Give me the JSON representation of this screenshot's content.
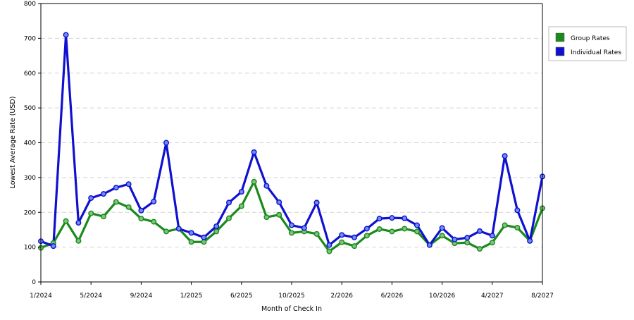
{
  "chart_data": {
    "type": "line",
    "xlabel": "Month of Check In",
    "ylabel": "Lowest Average Rate (USD)",
    "ylim": [
      0,
      800
    ],
    "yticks": [
      0,
      100,
      200,
      300,
      400,
      500,
      600,
      700,
      800
    ],
    "x_tick_labels": [
      "1/2024",
      "5/2024",
      "9/2024",
      "1/2025",
      "6/2025",
      "10/2025",
      "2/2026",
      "6/2026",
      "10/2026",
      "4/2027",
      "8/2027"
    ],
    "grid": "horizontal dashed",
    "legend_position": "right",
    "series": [
      {
        "name": "Group Rates",
        "color": "#1a8a1a",
        "values": [
          98,
          112,
          175,
          118,
          197,
          188,
          230,
          215,
          182,
          173,
          145,
          153,
          115,
          115,
          145,
          183,
          218,
          288,
          186,
          193,
          141,
          145,
          138,
          88,
          114,
          103,
          133,
          152,
          145,
          153,
          145,
          106,
          133,
          111,
          113,
          95,
          113,
          163,
          156,
          118,
          212
        ]
      },
      {
        "name": "Individual Rates",
        "color": "#1010d0",
        "values": [
          117,
          103,
          710,
          170,
          241,
          253,
          271,
          281,
          205,
          231,
          400,
          153,
          141,
          128,
          160,
          228,
          259,
          373,
          276,
          229,
          163,
          155,
          228,
          106,
          135,
          128,
          153,
          182,
          184,
          183,
          163,
          106,
          155,
          122,
          127,
          146,
          133,
          362,
          206,
          118,
          303
        ]
      }
    ]
  },
  "legend": {
    "group_label": "Group Rates",
    "individual_label": "Individual Rates"
  }
}
